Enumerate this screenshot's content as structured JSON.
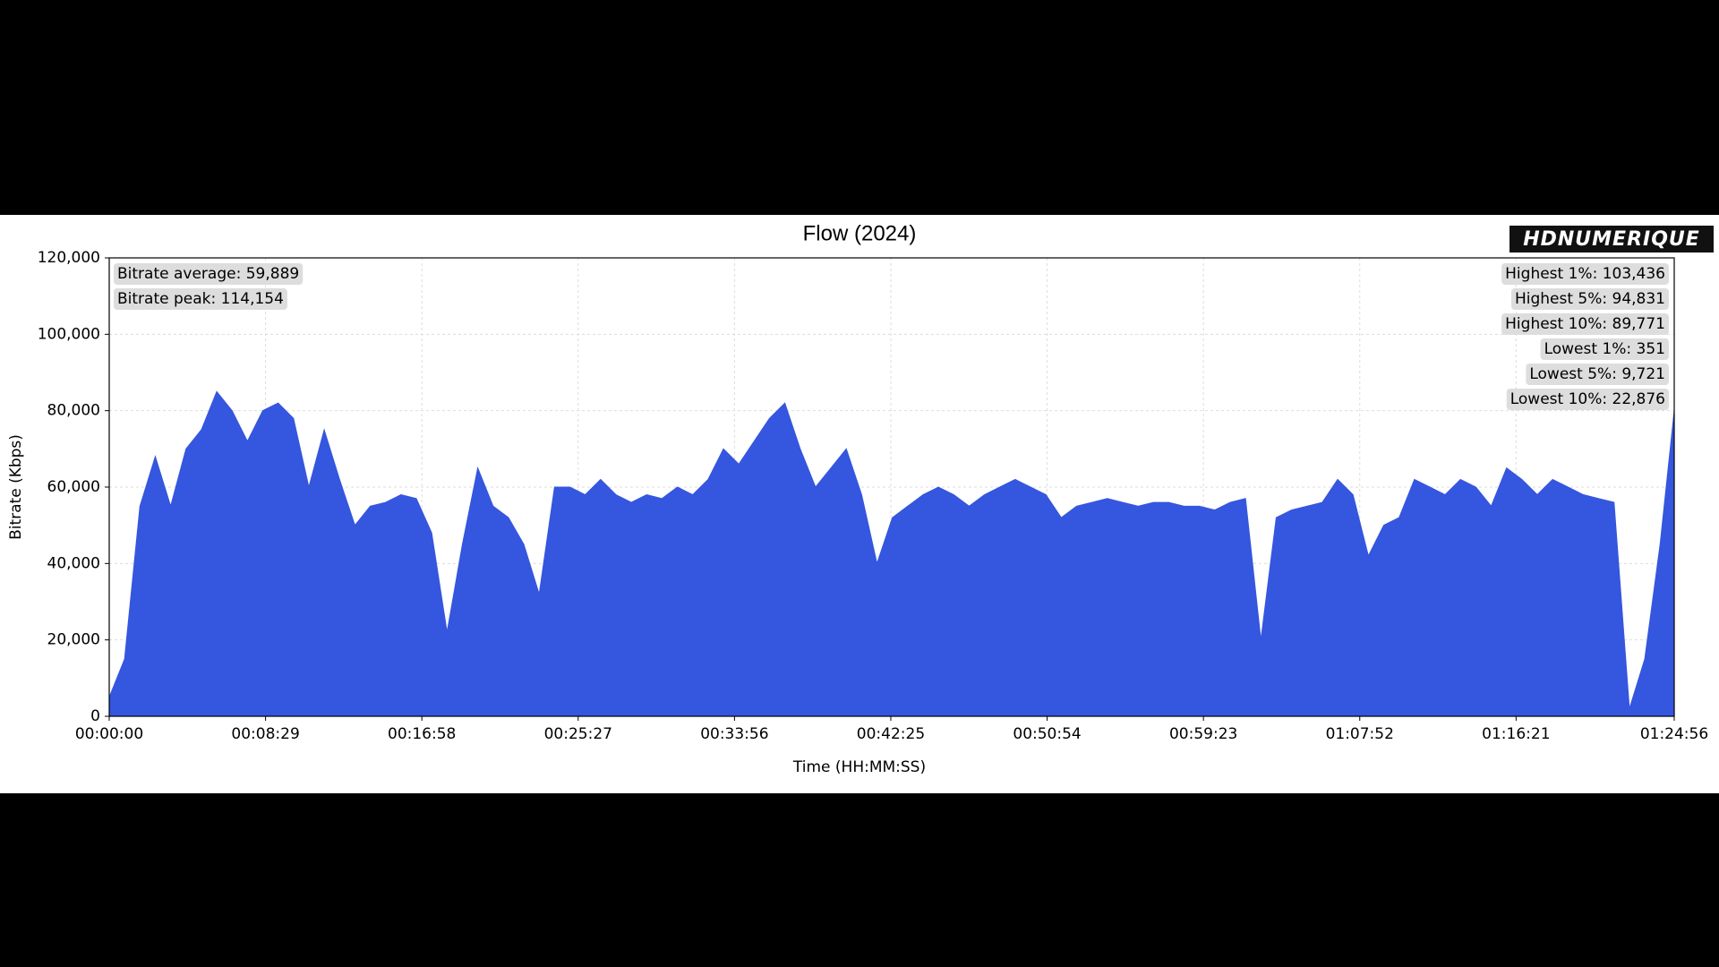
{
  "chart_data": {
    "type": "area",
    "title": "Flow (2024)",
    "watermark": "HDNUMERIQUE",
    "xlabel": "Time (HH:MM:SS)",
    "ylabel": "Bitrate (Kbps)",
    "color": "#3556de",
    "grid": true,
    "xlim": [
      0,
      5096
    ],
    "xticks": [
      {
        "value": 0,
        "label": "00:00:00"
      },
      {
        "value": 509,
        "label": "00:08:29"
      },
      {
        "value": 1018,
        "label": "00:16:58"
      },
      {
        "value": 1527,
        "label": "00:25:27"
      },
      {
        "value": 2036,
        "label": "00:33:56"
      },
      {
        "value": 2545,
        "label": "00:42:25"
      },
      {
        "value": 3054,
        "label": "00:50:54"
      },
      {
        "value": 3563,
        "label": "00:59:23"
      },
      {
        "value": 4072,
        "label": "01:07:52"
      },
      {
        "value": 4581,
        "label": "01:16:21"
      },
      {
        "value": 5096,
        "label": "01:24:56"
      }
    ],
    "ylim": [
      0,
      120000
    ],
    "yticks": [
      0,
      {
        "value": 20000,
        "label": "20,000"
      },
      {
        "value": 40000,
        "label": "40,000"
      },
      {
        "value": 60000,
        "label": "60,000"
      },
      {
        "value": 80000,
        "label": "80,000"
      },
      {
        "value": 100000,
        "label": "100,000"
      },
      {
        "value": 120000,
        "label": "120,000"
      }
    ],
    "annotations_left": [
      "Bitrate average: 59,889",
      "Bitrate peak: 114,154"
    ],
    "annotations_right": [
      "Highest 1%: 103,436",
      "Highest 5%: 94,831",
      "Highest 10%: 89,771",
      "Lowest 1%: 351",
      "Lowest 5%: 9,721",
      "Lowest 10%: 22,876"
    ],
    "x": [
      0,
      50,
      100,
      150,
      200,
      250,
      300,
      350,
      400,
      450,
      500,
      550,
      600,
      650,
      700,
      750,
      800,
      850,
      900,
      950,
      1000,
      1050,
      1100,
      1150,
      1200,
      1250,
      1300,
      1350,
      1400,
      1450,
      1500,
      1550,
      1600,
      1650,
      1700,
      1750,
      1800,
      1850,
      1900,
      1950,
      2000,
      2050,
      2100,
      2150,
      2200,
      2250,
      2300,
      2350,
      2400,
      2450,
      2500,
      2550,
      2600,
      2650,
      2700,
      2750,
      2800,
      2850,
      2900,
      2950,
      3000,
      3050,
      3100,
      3150,
      3200,
      3250,
      3300,
      3350,
      3400,
      3450,
      3500,
      3550,
      3600,
      3650,
      3700,
      3750,
      3800,
      3850,
      3900,
      3950,
      4000,
      4050,
      4100,
      4150,
      4200,
      4250,
      4300,
      4350,
      4400,
      4450,
      4500,
      4550,
      4600,
      4650,
      4700,
      4750,
      4800,
      4850,
      4900,
      4950,
      5000,
      5050,
      5096
    ],
    "values": [
      5000,
      15000,
      55000,
      68000,
      55000,
      70000,
      75000,
      85000,
      80000,
      72000,
      80000,
      82000,
      78000,
      60000,
      75000,
      62000,
      50000,
      55000,
      56000,
      58000,
      57000,
      48000,
      22000,
      45000,
      65000,
      55000,
      52000,
      45000,
      32000,
      60000,
      60000,
      58000,
      62000,
      58000,
      56000,
      58000,
      57000,
      60000,
      58000,
      62000,
      70000,
      66000,
      72000,
      78000,
      82000,
      70000,
      60000,
      65000,
      70000,
      58000,
      40000,
      52000,
      55000,
      58000,
      60000,
      58000,
      55000,
      58000,
      60000,
      62000,
      60000,
      58000,
      52000,
      55000,
      56000,
      57000,
      56000,
      55000,
      56000,
      56000,
      55000,
      55000,
      54000,
      56000,
      57000,
      20000,
      52000,
      54000,
      55000,
      56000,
      62000,
      58000,
      42000,
      50000,
      52000,
      62000,
      60000,
      58000,
      62000,
      60000,
      55000,
      65000,
      62000,
      58000,
      62000,
      60000,
      58000,
      57000,
      56000,
      2000,
      15000,
      45000,
      80000
    ]
  }
}
